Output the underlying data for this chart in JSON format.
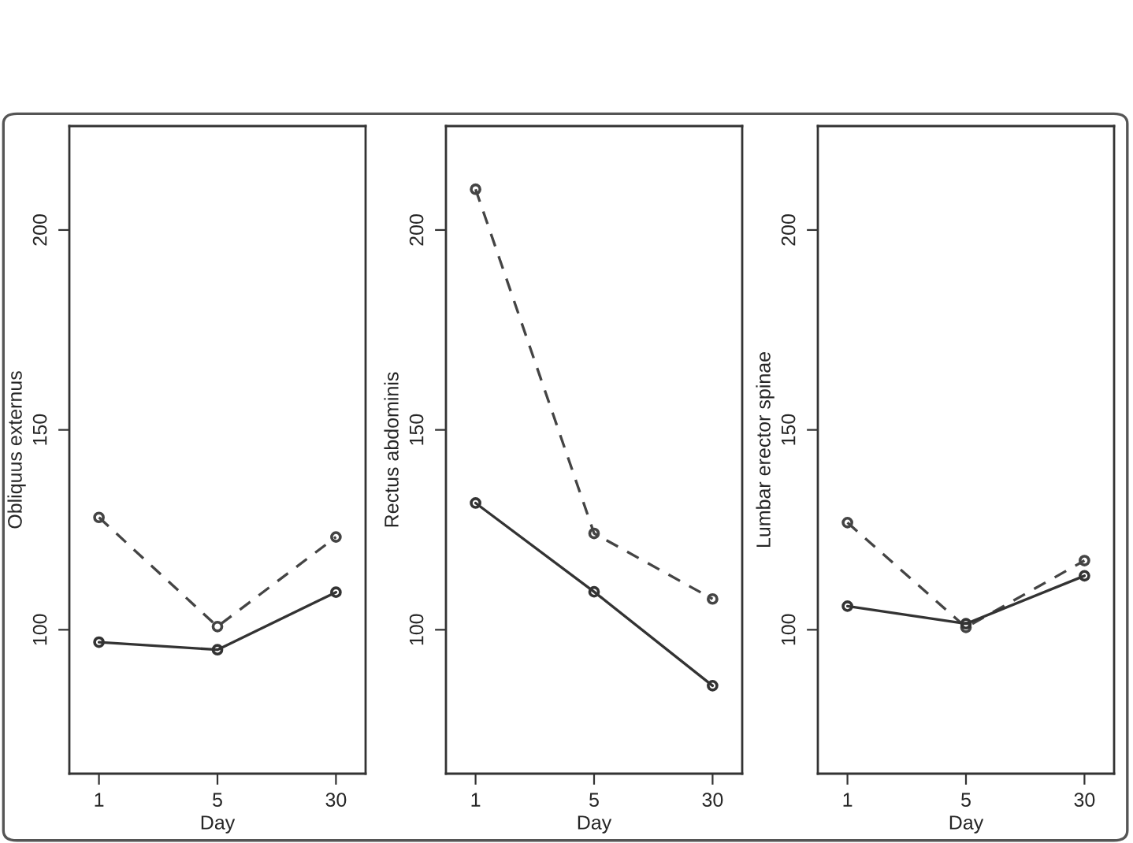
{
  "chart_data": [
    {
      "type": "line",
      "categories": [
        "1",
        "5",
        "30"
      ],
      "xlabel": "Day",
      "ylabel": "Obliquus externus",
      "ylim": [
        64,
        226
      ],
      "yticks": [
        100,
        150,
        200
      ],
      "marker": "circle",
      "series": [
        {
          "color": "#444444",
          "line_style": "dashed",
          "values": [
            128.1,
            100.8,
            123.2
          ]
        },
        {
          "color": "#333333",
          "line_style": "solid",
          "values": [
            96.9,
            95.0,
            109.4
          ]
        }
      ]
    },
    {
      "type": "line",
      "categories": [
        "1",
        "5",
        "30"
      ],
      "xlabel": "Day",
      "ylabel": "Rectus abdominis",
      "ylim": [
        64,
        226
      ],
      "yticks": [
        100,
        150,
        200
      ],
      "marker": "circle",
      "series": [
        {
          "color": "#444444",
          "line_style": "dashed",
          "values": [
            210.2,
            124.1,
            107.7
          ]
        },
        {
          "color": "#333333",
          "line_style": "solid",
          "values": [
            131.7,
            109.5,
            86.0
          ]
        }
      ]
    },
    {
      "type": "line",
      "categories": [
        "1",
        "5",
        "30"
      ],
      "xlabel": "Day",
      "ylabel": "Lumbar erector spinae",
      "ylim": [
        64,
        226
      ],
      "yticks": [
        100,
        150,
        200
      ],
      "marker": "circle",
      "series": [
        {
          "color": "#444444",
          "line_style": "dashed",
          "values": [
            126.8,
            100.6,
            117.3
          ]
        },
        {
          "color": "#333333",
          "line_style": "solid",
          "values": [
            105.9,
            101.5,
            113.5
          ]
        }
      ]
    }
  ]
}
